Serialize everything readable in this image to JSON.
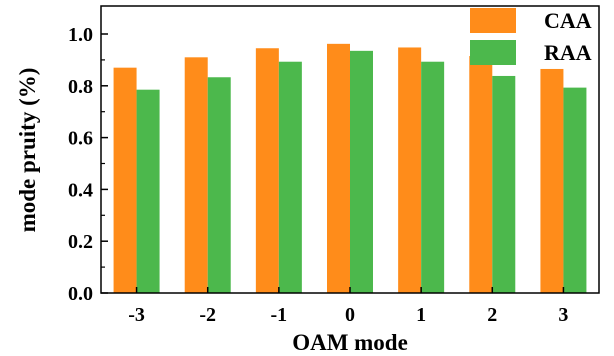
{
  "chart_data": {
    "type": "bar",
    "xlabel": "OAM mode",
    "ylabel": "mode pruity (%)",
    "categories": [
      "-3",
      "-2",
      "-1",
      "0",
      "1",
      "2",
      "3"
    ],
    "ylim": [
      0,
      1.0
    ],
    "yticks": [
      "0.0",
      "0.2",
      "0.4",
      "0.6",
      "0.8",
      "1.0"
    ],
    "ytick_values": [
      0,
      0.2,
      0.4,
      0.6,
      0.8,
      1.0
    ],
    "legend_position": "top-right",
    "grid": false,
    "series": [
      {
        "name": "CAA",
        "color": "#ff8c1a",
        "values": [
          0.87,
          0.91,
          0.945,
          0.962,
          0.948,
          0.915,
          0.865
        ]
      },
      {
        "name": "RAA",
        "color": "#4cb84c",
        "values": [
          0.785,
          0.833,
          0.893,
          0.935,
          0.893,
          0.838,
          0.793
        ]
      }
    ]
  }
}
